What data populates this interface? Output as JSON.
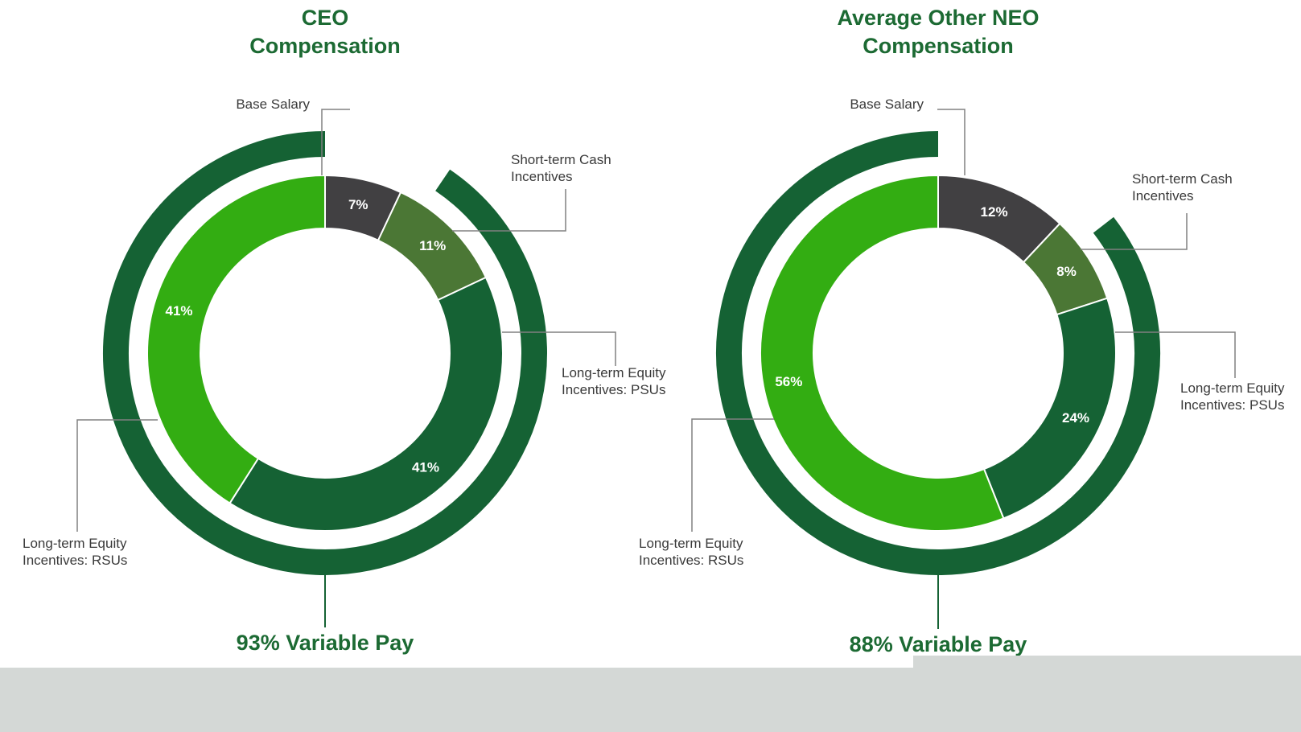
{
  "colors": {
    "title": "#1c6a33",
    "dark_green": "#156234",
    "mid_green": "#4b7735",
    "bright_green": "#33ad12",
    "charcoal": "#414042",
    "leader": "#808080",
    "label_text": "#3a3a3a"
  },
  "chart_data": [
    {
      "type": "pie",
      "title_lines": [
        "CEO",
        "Compensation"
      ],
      "categories": [
        "Base Salary",
        "Short-term Cash Incentives",
        "Long-term Equity Incentives: PSUs",
        "Long-term Equity Incentives: RSUs"
      ],
      "values": [
        7,
        11,
        41,
        41
      ],
      "value_labels": [
        "7%",
        "11%",
        "41%",
        "41%"
      ],
      "callouts": [
        {
          "lines": [
            "Base Salary"
          ]
        },
        {
          "lines": [
            "Short-term Cash",
            "Incentives"
          ]
        },
        {
          "lines": [
            "Long-term Equity",
            "Incentives: PSUs"
          ]
        },
        {
          "lines": [
            "Long-term Equity",
            "Incentives: RSUs"
          ]
        }
      ],
      "footer": "93% Variable Pay"
    },
    {
      "type": "pie",
      "title_lines": [
        "Average Other NEO",
        "Compensation"
      ],
      "categories": [
        "Base Salary",
        "Short-term Cash Incentives",
        "Long-term Equity Incentives: PSUs",
        "Long-term Equity Incentives: RSUs"
      ],
      "values": [
        12,
        8,
        24,
        56
      ],
      "value_labels": [
        "12%",
        "8%",
        "24%",
        "56%"
      ],
      "callouts": [
        {
          "lines": [
            "Base Salary"
          ]
        },
        {
          "lines": [
            "Short-term Cash",
            "Incentives"
          ]
        },
        {
          "lines": [
            "Long-term Equity",
            "Incentives: PSUs"
          ]
        },
        {
          "lines": [
            "Long-term Equity",
            "Incentives: RSUs"
          ]
        }
      ],
      "footer": "88% Variable Pay"
    }
  ]
}
